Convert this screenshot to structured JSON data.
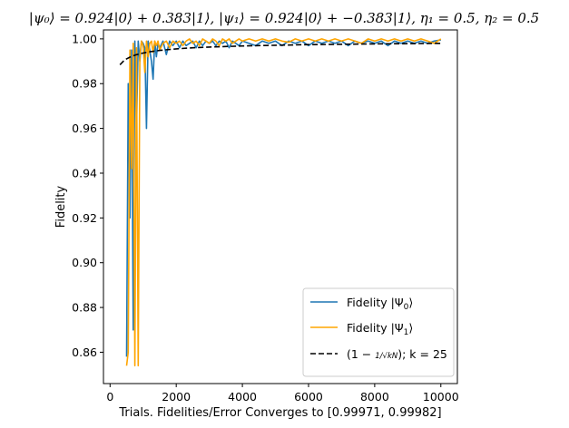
{
  "chart_data": {
    "type": "line",
    "title": "|ψ₀⟩ = 0.924|0⟩ + 0.383|1⟩, |ψ₁⟩ = 0.924|0⟩ + −0.383|1⟩, η₁ = 0.5, η₂ = 0.5",
    "xlabel": "Trials. Fidelities/Error Converges to [0.99971, 0.99982]",
    "ylabel": "Fidelity",
    "xlim": [
      -200,
      10500
    ],
    "ylim": [
      0.846,
      1.004
    ],
    "xticks": [
      0,
      2000,
      4000,
      6000,
      8000,
      10000
    ],
    "xtick_labels": [
      "0",
      "2000",
      "4000",
      "6000",
      "8000",
      "10000"
    ],
    "yticks": [
      0.86,
      0.88,
      0.9,
      0.92,
      0.94,
      0.96,
      0.98,
      1.0
    ],
    "ytick_labels": [
      "0.86",
      "0.88",
      "0.90",
      "0.92",
      "0.94",
      "0.96",
      "0.98",
      "1.00"
    ],
    "grid": false,
    "legend_position": "lower-right",
    "series": [
      {
        "name": "Fidelity |Ψ₀⟩",
        "color": "#1f77b4",
        "style": "solid",
        "x": [
          500,
          550,
          600,
          650,
          700,
          750,
          800,
          850,
          900,
          950,
          1000,
          1050,
          1100,
          1150,
          1200,
          1250,
          1300,
          1350,
          1400,
          1450,
          1500,
          1600,
          1700,
          1800,
          1900,
          2000,
          2100,
          2200,
          2300,
          2400,
          2500,
          2600,
          2700,
          2800,
          2900,
          3000,
          3100,
          3200,
          3300,
          3400,
          3500,
          3600,
          3700,
          3800,
          3900,
          4000,
          4200,
          4400,
          4600,
          4800,
          5000,
          5200,
          5400,
          5600,
          5800,
          6000,
          6200,
          6400,
          6600,
          6800,
          7000,
          7200,
          7400,
          7600,
          7800,
          8000,
          8200,
          8400,
          8600,
          8800,
          9000,
          9200,
          9400,
          9600,
          9800,
          10000
        ],
        "y": [
          0.858,
          0.98,
          0.92,
          0.995,
          0.87,
          0.999,
          0.96,
          0.999,
          0.99,
          0.999,
          0.998,
          0.996,
          0.96,
          0.999,
          0.995,
          0.99,
          0.982,
          0.999,
          0.992,
          0.998,
          0.996,
          0.999,
          0.993,
          0.999,
          0.997,
          0.999,
          0.996,
          0.999,
          0.997,
          0.998,
          0.999,
          0.996,
          0.999,
          0.997,
          0.999,
          0.998,
          0.999,
          0.997,
          0.999,
          0.998,
          0.999,
          0.996,
          0.999,
          0.998,
          0.997,
          0.999,
          0.998,
          0.997,
          0.999,
          0.998,
          0.999,
          0.997,
          0.999,
          0.998,
          0.999,
          0.997,
          0.999,
          0.998,
          0.999,
          0.998,
          0.999,
          0.997,
          0.999,
          0.998,
          0.999,
          0.998,
          0.999,
          0.997,
          0.999,
          0.998,
          0.999,
          0.998,
          0.999,
          0.998,
          0.999,
          0.9995
        ]
      },
      {
        "name": "Fidelity |Ψ₁⟩",
        "color": "#ffa500",
        "style": "solid",
        "x": [
          500,
          550,
          600,
          650,
          700,
          750,
          800,
          850,
          900,
          950,
          1000,
          1050,
          1100,
          1150,
          1200,
          1250,
          1300,
          1350,
          1400,
          1450,
          1500,
          1600,
          1700,
          1800,
          1900,
          2000,
          2100,
          2200,
          2300,
          2400,
          2500,
          2600,
          2700,
          2800,
          2900,
          3000,
          3100,
          3200,
          3300,
          3400,
          3500,
          3600,
          3700,
          3800,
          3900,
          4000,
          4200,
          4400,
          4600,
          4800,
          5000,
          5200,
          5400,
          5600,
          5800,
          6000,
          6200,
          6400,
          6600,
          6800,
          7000,
          7200,
          7400,
          7600,
          7800,
          8000,
          8200,
          8400,
          8600,
          8800,
          9000,
          9200,
          9400,
          9600,
          9800,
          10000
        ],
        "y": [
          0.854,
          0.86,
          0.995,
          0.942,
          0.998,
          0.854,
          0.996,
          0.854,
          0.992,
          0.999,
          0.997,
          0.985,
          0.999,
          0.992,
          0.998,
          0.999,
          0.994,
          0.999,
          0.997,
          0.999,
          0.995,
          0.998,
          0.999,
          0.996,
          0.999,
          0.998,
          0.999,
          0.997,
          0.999,
          1.0,
          0.998,
          0.999,
          0.997,
          1.0,
          0.999,
          0.998,
          1.0,
          0.999,
          0.997,
          1.0,
          0.999,
          1.0,
          0.998,
          0.999,
          1.0,
          0.999,
          1.0,
          0.999,
          1.0,
          0.999,
          1.0,
          0.999,
          0.9985,
          1.0,
          0.999,
          1.0,
          0.999,
          1.0,
          0.999,
          1.0,
          0.999,
          1.0,
          0.999,
          0.998,
          1.0,
          0.999,
          1.0,
          0.999,
          1.0,
          0.999,
          1.0,
          0.999,
          1.0,
          0.999,
          0.998,
          1.0
        ]
      },
      {
        "name": "(1 − 1/√kN); k = 25",
        "color": "#000000",
        "style": "dashed",
        "x": [
          300,
          400,
          500,
          600,
          700,
          800,
          1000,
          1200,
          1500,
          2000,
          2500,
          3000,
          4000,
          5000,
          6000,
          7000,
          8000,
          9000,
          10000
        ],
        "y": [
          0.98845,
          0.99,
          0.99106,
          0.99184,
          0.99244,
          0.99293,
          0.99368,
          0.99423,
          0.99484,
          0.99553,
          0.996,
          0.99635,
          0.99684,
          0.99717,
          0.99742,
          0.99761,
          0.99776,
          0.99789,
          0.998
        ]
      }
    ]
  },
  "legend": {
    "entries": [
      {
        "label_main": "Fidelity |Ψ",
        "label_sub": "0",
        "label_end": "⟩"
      },
      {
        "label_main": "Fidelity |Ψ",
        "label_sub": "1",
        "label_end": "⟩"
      },
      {
        "label_main": "(1 − ",
        "label_frac": "1/√kN",
        "label_end": "); k = 25"
      }
    ]
  }
}
